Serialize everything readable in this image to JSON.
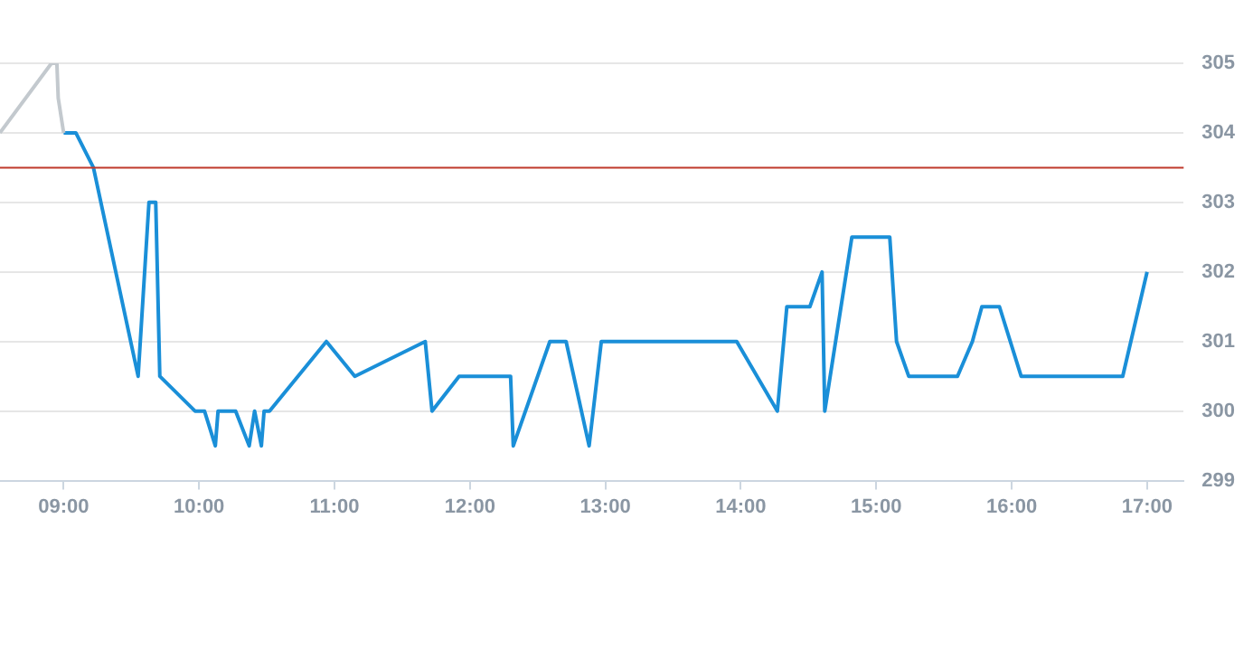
{
  "chart_data": {
    "type": "line",
    "xlim": [
      8.53,
      17.27
    ],
    "ylim": [
      299,
      305
    ],
    "xticks": [
      {
        "value": 9,
        "label": "09:00"
      },
      {
        "value": 10,
        "label": "10:00"
      },
      {
        "value": 11,
        "label": "11:00"
      },
      {
        "value": 12,
        "label": "12:00"
      },
      {
        "value": 13,
        "label": "13:00"
      },
      {
        "value": 14,
        "label": "14:00"
      },
      {
        "value": 15,
        "label": "15:00"
      },
      {
        "value": 16,
        "label": "16:00"
      },
      {
        "value": 17,
        "label": "17:00"
      }
    ],
    "yticks": [
      299,
      300,
      301,
      302,
      303,
      304,
      305
    ],
    "grid": "y",
    "legend": false,
    "marker": "none",
    "line_style": "solid",
    "ref_lines": [
      {
        "axis": "y",
        "value": 303.5,
        "color": "#c0392b"
      }
    ],
    "series": [
      {
        "color": "#c3c9ce",
        "x": [
          8.53,
          8.91,
          8.95,
          8.96,
          9.0
        ],
        "values": [
          304,
          305,
          305,
          304.5,
          304
        ]
      },
      {
        "color": "#1a8fd8",
        "x": [
          9.0,
          9.09,
          9.22,
          9.55,
          9.63,
          9.68,
          9.71,
          9.97,
          10.04,
          10.12,
          10.14,
          10.27,
          10.37,
          10.41,
          10.46,
          10.48,
          10.52,
          10.94,
          11.15,
          11.67,
          11.72,
          11.92,
          12.3,
          12.32,
          12.59,
          12.71,
          12.88,
          12.97,
          13.97,
          14.27,
          14.34,
          14.51,
          14.6,
          14.62,
          14.82,
          15.1,
          15.15,
          15.24,
          15.6,
          15.71,
          15.78,
          15.91,
          16.07,
          16.82,
          17.0
        ],
        "values": [
          304,
          304,
          303.5,
          300.5,
          303,
          303,
          300.5,
          300,
          300,
          299.5,
          300,
          300,
          299.5,
          300,
          299.5,
          300,
          300,
          301,
          300.5,
          301,
          300,
          300.5,
          300.5,
          299.5,
          301,
          301,
          299.5,
          301,
          301,
          300,
          301.5,
          301.5,
          302,
          300,
          302.5,
          302.5,
          301,
          300.5,
          300.5,
          301,
          301.5,
          301.5,
          300.5,
          300.5,
          302
        ]
      }
    ]
  }
}
